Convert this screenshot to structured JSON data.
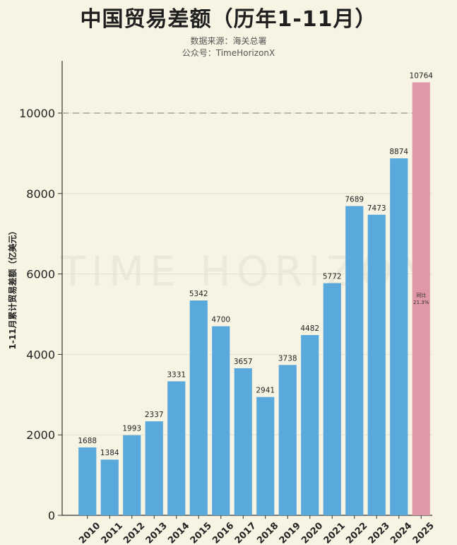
{
  "title": "中国贸易差额（历年1-11月）",
  "source_line": "数据来源：海关总署",
  "account_line": "公众号：TimeHorizonX",
  "watermark": "TIME HORIZON",
  "colors": {
    "bar": "#5aa9dc",
    "highlight_bar": "#e098a6",
    "reference_line": "#bbb7ab",
    "background": "#f7f4e4"
  },
  "chart_data": {
    "type": "bar",
    "ylabel": "1-11月累计贸易差额（亿美元）",
    "xlabel": "",
    "categories": [
      "2010",
      "2011",
      "2012",
      "2013",
      "2014",
      "2015",
      "2016",
      "2017",
      "2018",
      "2019",
      "2020",
      "2021",
      "2022",
      "2023",
      "2024",
      "2025"
    ],
    "values": [
      1688,
      1384,
      1993,
      2337,
      3331,
      5342,
      4700,
      3657,
      2941,
      3738,
      4482,
      5772,
      7689,
      7473,
      8874,
      10764
    ],
    "ylim": [
      0,
      11300
    ],
    "yticks": [
      0,
      2000,
      4000,
      6000,
      8000,
      10000
    ],
    "reference_line": 10000,
    "highlight_index": 15,
    "highlight_note": [
      "同比",
      "21.3%"
    ],
    "grid": true
  }
}
